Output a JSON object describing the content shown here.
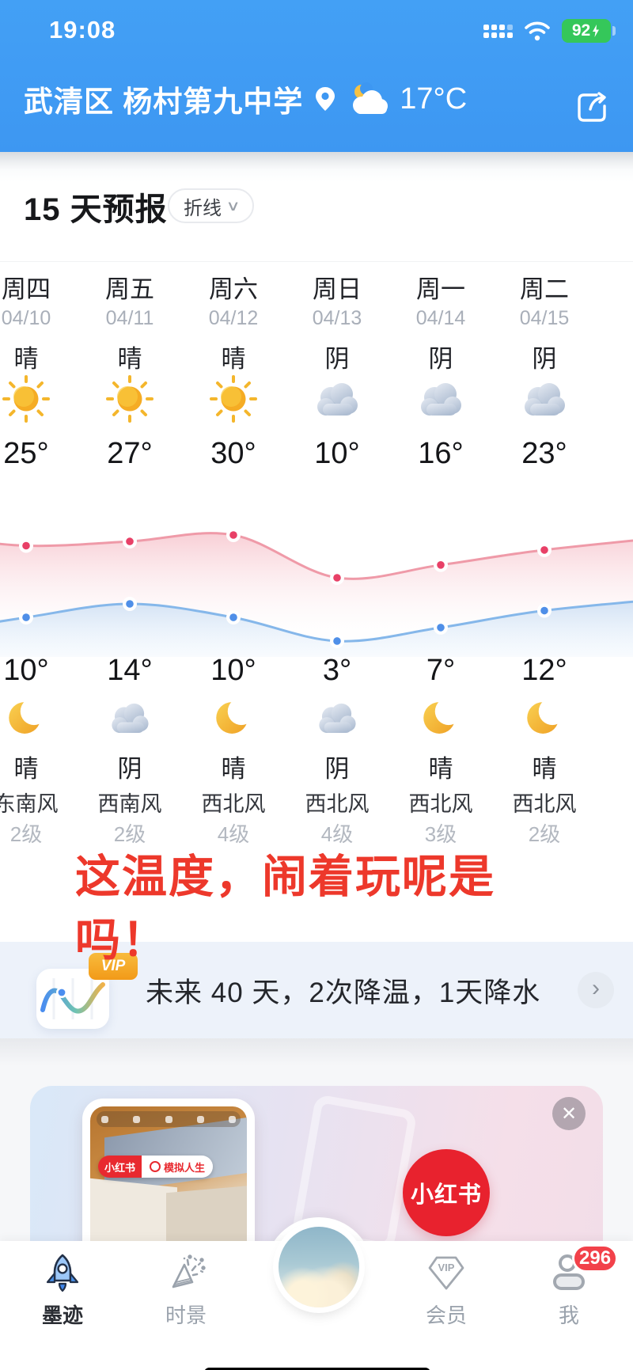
{
  "status_bar": {
    "time": "19:08",
    "battery": "92"
  },
  "header": {
    "location": "武清区 杨村第九中学",
    "temp": "17°C"
  },
  "forecast": {
    "title": "15 天预报",
    "view_toggle": "折线",
    "days": [
      {
        "day": "周四",
        "date": "04/10",
        "day_cond": "晴",
        "day_icon": "sun-icon",
        "high": "25°",
        "low": "10°",
        "night_icon": "moon-icon",
        "night_cond": "晴",
        "wind": "东南风",
        "wind_level": "2级"
      },
      {
        "day": "周五",
        "date": "04/11",
        "day_cond": "晴",
        "day_icon": "sun-icon",
        "high": "27°",
        "low": "14°",
        "night_icon": "cloud-icon",
        "night_cond": "阴",
        "wind": "西南风",
        "wind_level": "2级"
      },
      {
        "day": "周六",
        "date": "04/12",
        "day_cond": "晴",
        "day_icon": "sun-icon",
        "high": "30°",
        "low": "10°",
        "night_icon": "moon-icon",
        "night_cond": "晴",
        "wind": "西北风",
        "wind_level": "4级"
      },
      {
        "day": "周日",
        "date": "04/13",
        "day_cond": "阴",
        "day_icon": "cloud-icon",
        "high": "10°",
        "low": "3°",
        "night_icon": "cloud-icon",
        "night_cond": "阴",
        "wind": "西北风",
        "wind_level": "4级"
      },
      {
        "day": "周一",
        "date": "04/14",
        "day_cond": "阴",
        "day_icon": "cloud-icon",
        "high": "16°",
        "low": "7°",
        "night_icon": "moon-icon",
        "night_cond": "晴",
        "wind": "西北风",
        "wind_level": "3级"
      },
      {
        "day": "周二",
        "date": "04/15",
        "day_cond": "阴",
        "day_icon": "cloud-icon",
        "high": "23°",
        "low": "12°",
        "night_icon": "moon-icon",
        "night_cond": "晴",
        "wind": "西北风",
        "wind_level": "2级"
      }
    ]
  },
  "chart_data": {
    "type": "line",
    "categories": [
      "周四",
      "周五",
      "周六",
      "周日",
      "周一",
      "周二"
    ],
    "series": [
      {
        "name": "high-temp",
        "color": "#ef5d7e",
        "values": [
          25,
          27,
          30,
          10,
          16,
          23
        ]
      },
      {
        "name": "low-temp",
        "color": "#4f8fe8",
        "values": [
          10,
          14,
          10,
          3,
          7,
          12
        ]
      }
    ],
    "unit": "°",
    "grid": false,
    "legend": "none"
  },
  "overlay": {
    "line1": "这温度，闹着玩呢是",
    "line2": "吗！"
  },
  "banner": {
    "vip_label": "VIP",
    "text": "未来 40 天，2次降温，1天降水",
    "chevron": "›"
  },
  "ad": {
    "close": "✕",
    "search_brand": "小红书",
    "search_term": "模拟人生",
    "logo": "小红书"
  },
  "nav": {
    "vip_icon_text": "VIP",
    "items": [
      {
        "label": "墨迹",
        "active": true
      },
      {
        "label": "时景"
      },
      {
        "label": "会员"
      },
      {
        "label": "我",
        "badge": "296"
      }
    ]
  },
  "colors": {
    "header_blue": "#3d97f2",
    "battery_green": "#35c75a",
    "overlay_red": "#ed382b",
    "brand_red": "#e8222e",
    "badge_red": "#f2414a"
  }
}
